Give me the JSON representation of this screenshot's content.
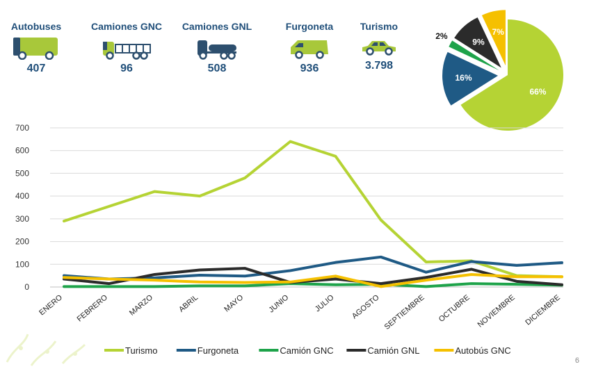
{
  "kpis": [
    {
      "label": "Autobuses",
      "value": "407",
      "icon": "bus-icon"
    },
    {
      "label": "Camiones GNC",
      "value": "96",
      "icon": "truck-cng-icon"
    },
    {
      "label": "Camiones GNL",
      "value": "508",
      "icon": "truck-lng-icon"
    },
    {
      "label": "Furgoneta",
      "value": "936",
      "icon": "van-icon"
    },
    {
      "label": "Turismo",
      "value": "3.798",
      "icon": "car-icon"
    }
  ],
  "colors": {
    "turismo": "#b5d334",
    "furgoneta": "#1f5a85",
    "camion_gnc": "#1ea34a",
    "camion_gnl": "#2b2b2b",
    "autobus_gnc": "#f5c000",
    "vehicle_green": "#a8c83a",
    "vehicle_blue": "#2d4f6e"
  },
  "page_number": "6",
  "chart_data": [
    {
      "type": "line",
      "title": "",
      "xlabel": "",
      "ylabel": "",
      "ylim": [
        0,
        700
      ],
      "yticks": [
        0,
        100,
        200,
        300,
        400,
        500,
        600,
        700
      ],
      "grid": true,
      "legend": "bottom",
      "categories": [
        "ENERO",
        "FEBRERO",
        "MARZO",
        "ABRIL",
        "MAYO",
        "JUNIO",
        "JULIO",
        "AGOSTO",
        "SEPTIEMBRE",
        "OCTUBRE",
        "NOVIEMBRE",
        "DICIEMBRE"
      ],
      "series": [
        {
          "name": "Turismo",
          "color": "#b5d334",
          "values": [
            290,
            355,
            420,
            400,
            480,
            640,
            575,
            295,
            110,
            115,
            50,
            45
          ]
        },
        {
          "name": "Furgoneta",
          "color": "#1f5a85",
          "values": [
            50,
            35,
            40,
            52,
            48,
            72,
            108,
            132,
            65,
            112,
            95,
            107
          ]
        },
        {
          "name": "Camión GNC",
          "color": "#1ea34a",
          "values": [
            2,
            2,
            2,
            5,
            5,
            15,
            10,
            12,
            2,
            15,
            12,
            8
          ]
        },
        {
          "name": "Camión GNL",
          "color": "#2b2b2b",
          "values": [
            35,
            15,
            55,
            75,
            82,
            20,
            35,
            15,
            42,
            78,
            25,
            10
          ]
        },
        {
          "name": "Autobús GNC",
          "color": "#f5c000",
          "values": [
            42,
            35,
            30,
            22,
            20,
            22,
            48,
            2,
            30,
            55,
            45,
            45
          ]
        }
      ]
    },
    {
      "type": "pie",
      "slices": [
        {
          "label": "66%",
          "value": 66,
          "color": "#b5d334"
        },
        {
          "label": "16%",
          "value": 16,
          "color": "#1f5a85"
        },
        {
          "label": "2%",
          "value": 2,
          "color": "#1ea34a"
        },
        {
          "label": "9%",
          "value": 9,
          "color": "#2b2b2b"
        },
        {
          "label": "7%",
          "value": 7,
          "color": "#f5c000"
        }
      ]
    }
  ]
}
